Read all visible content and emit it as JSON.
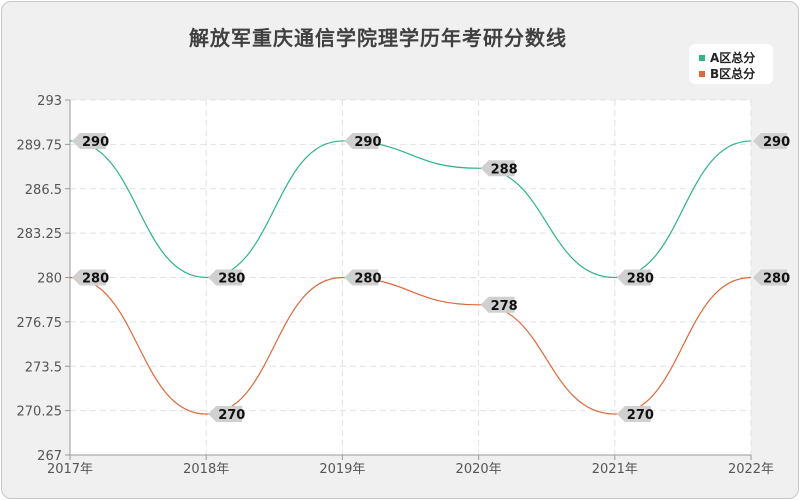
{
  "chart_data": {
    "type": "line",
    "title": "解放军重庆通信学院理学历年考研分数线",
    "xlabel": "",
    "ylabel": "",
    "categories": [
      "2017年",
      "2018年",
      "2019年",
      "2020年",
      "2021年",
      "2022年"
    ],
    "ylim": [
      267,
      293
    ],
    "y_ticks": [
      "293",
      "289.75",
      "286.5",
      "283.25",
      "280",
      "276.75",
      "273.5",
      "270.25",
      "267"
    ],
    "y_tick_values": [
      293,
      289.75,
      286.5,
      283.25,
      280,
      276.75,
      273.5,
      270.25,
      267
    ],
    "grid": true,
    "legend_position": "top-right",
    "smooth": true,
    "series": [
      {
        "name": "A区总分",
        "color": "#2bb38a",
        "values": [
          290,
          280,
          290,
          288,
          280,
          290
        ]
      },
      {
        "name": "B区总分",
        "color": "#e0673a",
        "values": [
          280,
          270,
          280,
          278,
          270,
          280
        ]
      }
    ]
  }
}
